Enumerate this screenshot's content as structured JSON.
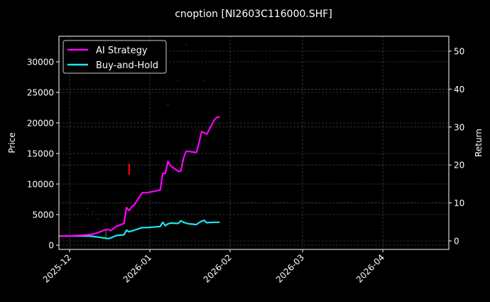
{
  "chart_data": {
    "type": "line",
    "title": "cnoption [NI2603C116000.SHF]",
    "xlabel": "",
    "ylabel": "Price",
    "ylabel_right": "Return",
    "x_ticks": [
      "2025-12",
      "2026-01",
      "2026-02",
      "2026-03",
      "2026-04"
    ],
    "y_ticks_left": [
      0,
      5000,
      10000,
      15000,
      20000,
      25000,
      30000
    ],
    "y_ticks_right": [
      0,
      10,
      20,
      30,
      40,
      50
    ],
    "ylim_left": [
      -800,
      34000
    ],
    "ylim_right": [
      -1.2,
      53.5
    ],
    "xlim": [
      "2025-11-27",
      "2026-04-28"
    ],
    "grid": true,
    "legend_position": "upper left",
    "legend": [
      "AI Strategy",
      "Buy-and-Hold"
    ],
    "colors": {
      "ai_strategy": "#ff00ff",
      "buy_and_hold": "#22e5f0",
      "price": "#b00000",
      "buy_marker": "#00a000",
      "sell_marker": "#ff0000",
      "background": "#000000"
    },
    "x": [
      "2025-11-27",
      "2025-12-01",
      "2025-12-04",
      "2025-12-08",
      "2025-12-10",
      "2025-12-12",
      "2025-12-15",
      "2025-12-16",
      "2025-12-17",
      "2025-12-18",
      "2025-12-19",
      "2025-12-22",
      "2025-12-23",
      "2025-12-24",
      "2025-12-25",
      "2025-12-26",
      "2025-12-29",
      "2025-12-30",
      "2025-12-31",
      "2026-01-05",
      "2026-01-06",
      "2026-01-07",
      "2026-01-08",
      "2026-01-09",
      "2026-01-12",
      "2026-01-13",
      "2026-01-14",
      "2026-01-15",
      "2026-01-16",
      "2026-01-19",
      "2026-01-20",
      "2026-01-21",
      "2026-01-22",
      "2026-01-23",
      "2026-01-26",
      "2026-01-27",
      "2026-01-28"
    ],
    "series": [
      {
        "name": "AI Strategy",
        "axis": "right",
        "values": [
          1.3,
          1.3,
          1.4,
          1.6,
          1.8,
          2.2,
          3.0,
          3.0,
          2.7,
          3.3,
          3.8,
          4.6,
          8.8,
          8.0,
          9.0,
          9.5,
          12.7,
          12.7,
          12.7,
          13.4,
          17.8,
          17.8,
          21.0,
          19.8,
          18.3,
          18.4,
          21.8,
          23.6,
          23.6,
          23.3,
          25.8,
          28.8,
          28.5,
          28.1,
          32.0,
          32.6,
          32.6
        ]
      },
      {
        "name": "Buy-and-Hold",
        "axis": "right",
        "values": [
          1.3,
          1.3,
          1.3,
          1.3,
          1.2,
          1.0,
          0.7,
          0.6,
          0.8,
          1.1,
          1.4,
          1.6,
          2.8,
          2.4,
          2.6,
          2.8,
          3.5,
          3.5,
          3.5,
          3.8,
          4.9,
          4.0,
          4.5,
          4.7,
          4.6,
          5.3,
          4.9,
          4.7,
          4.5,
          4.3,
          4.8,
          5.2,
          5.4,
          4.8,
          4.9,
          4.9,
          4.9
        ]
      }
    ],
    "trade_markers": [
      {
        "type": "buy",
        "date": "2025-12-15",
        "price_range": [
          1000,
          2700
        ]
      },
      {
        "type": "sell",
        "date": "2025-12-24",
        "price_range": [
          11500,
          13300
        ]
      }
    ],
    "price_trace_faint": [
      {
        "date": "2025-12-03",
        "price": 5000
      },
      {
        "date": "2025-12-08",
        "price": 6000
      },
      {
        "date": "2025-12-10",
        "price": 5400
      },
      {
        "date": "2025-12-12",
        "price": 4300
      },
      {
        "date": "2025-12-15",
        "price": 3500
      },
      {
        "date": "2025-12-29",
        "price": 20000
      },
      {
        "date": "2026-01-08",
        "price": 23000
      },
      {
        "date": "2026-01-12",
        "price": 27000
      },
      {
        "date": "2026-01-15",
        "price": 32800
      },
      {
        "date": "2026-01-22",
        "price": 27000
      }
    ]
  },
  "title": "cnoption [NI2603C116000.SHF]",
  "axes": {
    "ylabel_left": "Price",
    "ylabel_right": "Return",
    "x_ticks": [
      "2025-12",
      "2026-01",
      "2026-02",
      "2026-03",
      "2026-04"
    ],
    "y_ticks_left": [
      "0",
      "5000",
      "10000",
      "15000",
      "20000",
      "25000",
      "30000"
    ],
    "y_ticks_right": [
      "0",
      "10",
      "20",
      "30",
      "40",
      "50"
    ]
  },
  "legend": {
    "items": [
      {
        "label": "AI Strategy",
        "color": "#ff00ff"
      },
      {
        "label": "Buy-and-Hold",
        "color": "#22e5f0"
      }
    ]
  }
}
